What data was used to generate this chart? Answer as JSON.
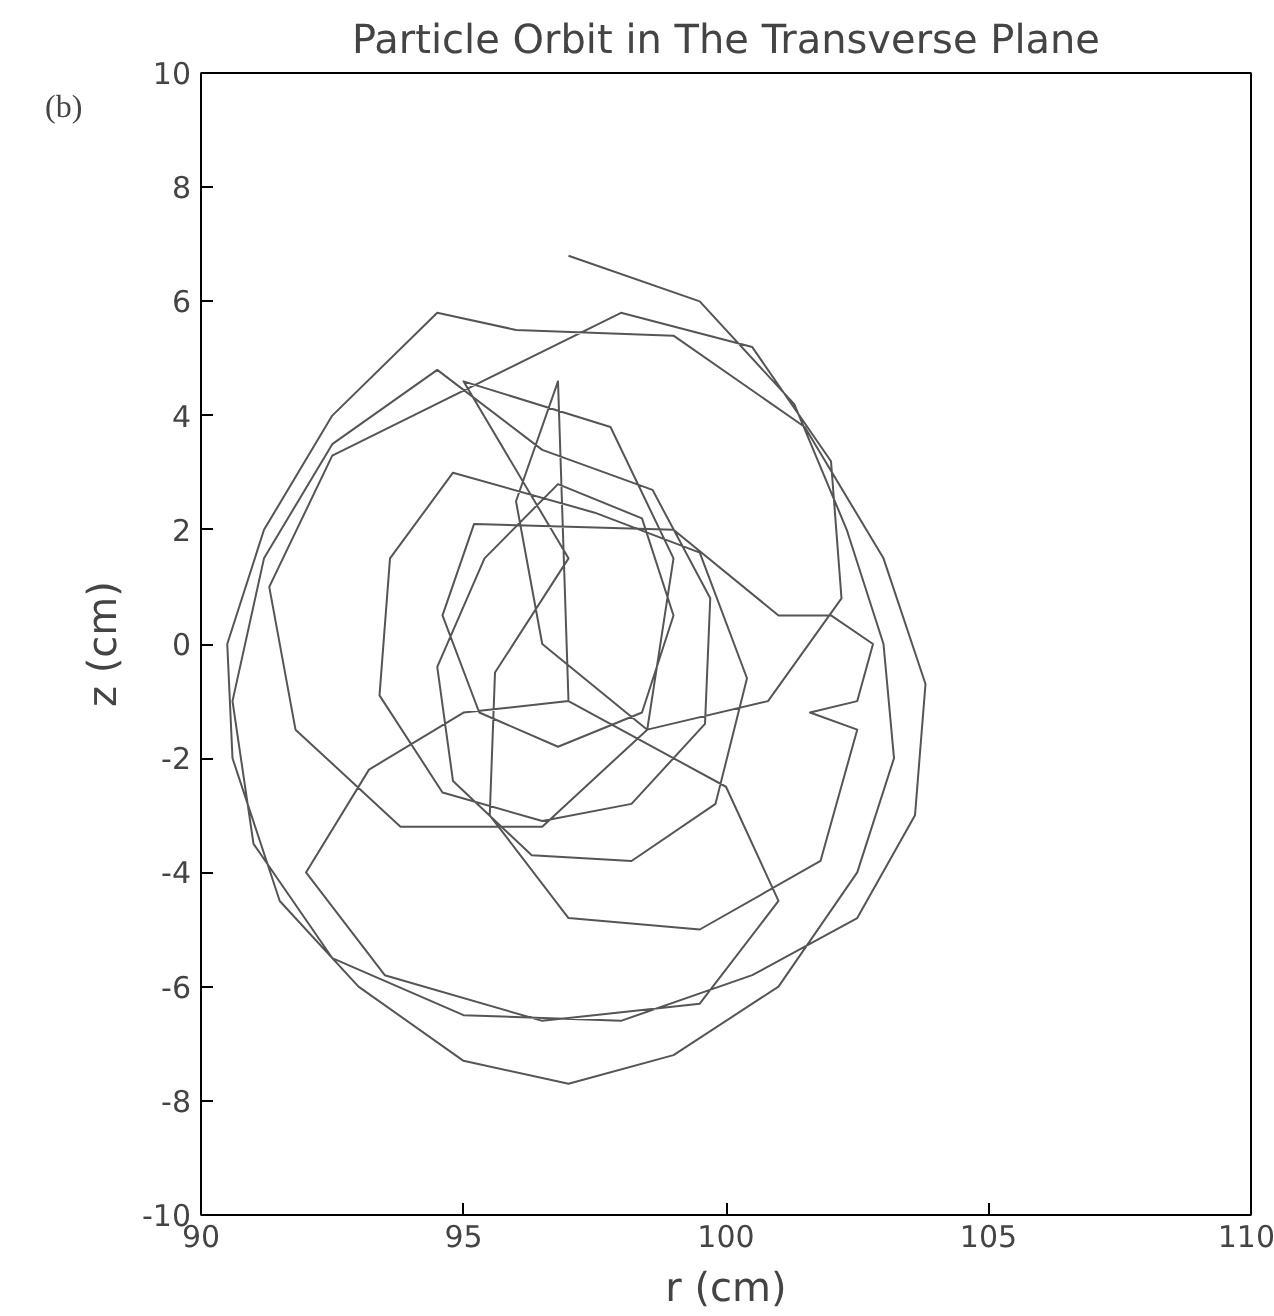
{
  "chart_data": {
    "type": "line",
    "title": "Particle Orbit in The Transverse Plane",
    "xlabel": "r (cm)",
    "ylabel": "z (cm)",
    "annotations": [
      "(b)"
    ],
    "xlim": [
      90,
      110
    ],
    "ylim": [
      -10,
      10
    ],
    "xticks": [
      90,
      95,
      100,
      105,
      110
    ],
    "yticks": [
      -10,
      -8,
      -6,
      -4,
      -2,
      0,
      2,
      4,
      6,
      8,
      10
    ],
    "grid": false,
    "marker": "none",
    "line_style": "solid",
    "series": [
      {
        "color": "#555555",
        "x": [
          97,
          99.5,
          101.3,
          102.3,
          103,
          103.2,
          102.5,
          101,
          99,
          97,
          95,
          93,
          91.5,
          90.6,
          90.5,
          91.2,
          92.5,
          94.5,
          96,
          99,
          101.5,
          103,
          103.8,
          103.6,
          102.5,
          100.5,
          98,
          95,
          92.5,
          91,
          90.6,
          91.2,
          92.5,
          94.5,
          96.5,
          98.6,
          99.7,
          99.6,
          98.2,
          96.5,
          94.6,
          93.4,
          93.6,
          94.8,
          97.5,
          99.5,
          100.4,
          99.8,
          98.2,
          96.3,
          94.8,
          94.5,
          95.4,
          96.8,
          98.4,
          99.0,
          98.4,
          96.8,
          95.3,
          94.6,
          95.2,
          99,
          101,
          102,
          102.8,
          102.5,
          101.6,
          102.5,
          101.8,
          99.5,
          97,
          95.5,
          95.6,
          97,
          95,
          97.8,
          99,
          98.5,
          96.5,
          93.8,
          91.8,
          91.3,
          92.5,
          98,
          100.5,
          102,
          102.2,
          100.8,
          98.5,
          96.5,
          96,
          96.8,
          97,
          100,
          101,
          99.5,
          96.5,
          93.5,
          92,
          93.2,
          95,
          97
        ],
        "values": [
          6.8,
          6,
          4.2,
          2,
          0,
          -2,
          -4,
          -6,
          -7.2,
          -7.7,
          -7.3,
          -6,
          -4.5,
          -2,
          0,
          2,
          4,
          5.8,
          5.5,
          5.4,
          3.8,
          1.5,
          -0.7,
          -3,
          -4.8,
          -5.8,
          -6.6,
          -6.5,
          -5.5,
          -3.5,
          -1,
          1.5,
          3.5,
          4.8,
          3.4,
          2.7,
          0.8,
          -1.4,
          -2.8,
          -3.1,
          -2.6,
          -0.9,
          1.5,
          3.0,
          2.3,
          1.6,
          -0.6,
          -2.8,
          -3.8,
          -3.7,
          -2.4,
          -0.4,
          1.5,
          2.8,
          2.2,
          0.5,
          -1.2,
          -1.8,
          -1.2,
          0.5,
          2.1,
          2,
          0.5,
          0.5,
          0,
          -1,
          -1.2,
          -1.5,
          -3.8,
          -5,
          -4.8,
          -3,
          -0.5,
          1.5,
          4.6,
          3.8,
          1.5,
          -1.5,
          -3.2,
          -3.2,
          -1.5,
          1,
          3.3,
          5.8,
          5.2,
          3.2,
          0.8,
          -1,
          -1.5,
          0,
          2.5,
          4.6,
          -1,
          -2.5,
          -4.5,
          -6.3,
          -6.6,
          -5.8,
          -4,
          -2.2,
          -1.2,
          -1
        ]
      }
    ]
  }
}
